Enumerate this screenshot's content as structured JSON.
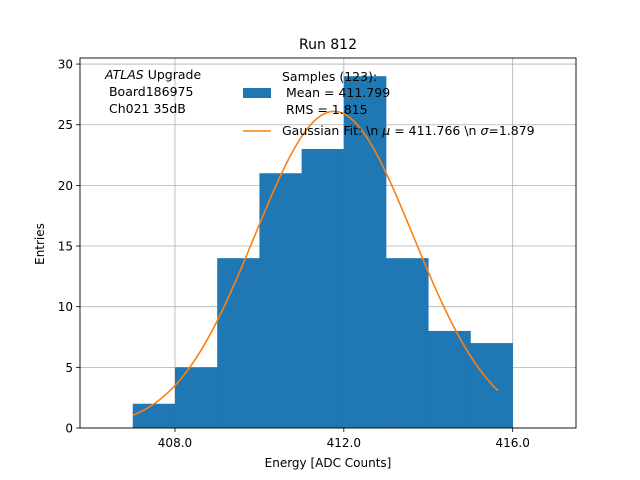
{
  "chart_data": {
    "type": "bar",
    "title": "Run 812",
    "xlabel": "Energy [ADC Counts]",
    "ylabel": "Entries",
    "xlim": [
      405.75,
      417.5
    ],
    "ylim": [
      0,
      30.5
    ],
    "xticks": [
      408.0,
      412.0,
      416.0
    ],
    "xtick_labels": [
      "408.0",
      "412.0",
      "416.0"
    ],
    "yticks": [
      0,
      5,
      10,
      15,
      20,
      25,
      30
    ],
    "ytick_labels": [
      "0",
      "5",
      "10",
      "15",
      "20",
      "25",
      "30"
    ],
    "grid": true,
    "histogram": {
      "name": "Samples (123):\n Mean = 411.799\n RMS = 1.815",
      "color": "#1f77b4",
      "bins": [
        {
          "x0": 407,
          "x1": 408,
          "count": 2
        },
        {
          "x0": 408,
          "x1": 409,
          "count": 5
        },
        {
          "x0": 409,
          "x1": 410,
          "count": 14
        },
        {
          "x0": 410,
          "x1": 411,
          "count": 21
        },
        {
          "x0": 411,
          "x1": 412,
          "count": 23
        },
        {
          "x0": 412,
          "x1": 413,
          "count": 29
        },
        {
          "x0": 413,
          "x1": 414,
          "count": 14
        },
        {
          "x0": 414,
          "x1": 415,
          "count": 8
        },
        {
          "x0": 415,
          "x1": 416,
          "count": 7
        }
      ]
    },
    "fit": {
      "name": "Gaussian Fit: \\n $\\mu$ = 411.766 \\n $\\sigma$=1.879",
      "type": "gaussian",
      "mu": 411.766,
      "sigma": 1.879,
      "amplitude": 26.1,
      "x_range": [
        407.0,
        415.65
      ],
      "color": "#ff7f0e"
    },
    "annotation": {
      "italic": "ATLAS",
      "line1_rest": " Upgrade",
      "line2": " Board186975",
      "line3": " Ch021 35dB"
    },
    "legend": {
      "placement": "top-right",
      "hist_lines": [
        "Samples (123):",
        " Mean = 411.799",
        " RMS = 1.815"
      ],
      "fit_label_prefix": "Gaussian Fit: \\n ",
      "fit_label_mu": "μ",
      "fit_label_mid": " = 411.766 \\n ",
      "fit_label_sigma": "σ",
      "fit_label_end": "=1.879"
    }
  }
}
